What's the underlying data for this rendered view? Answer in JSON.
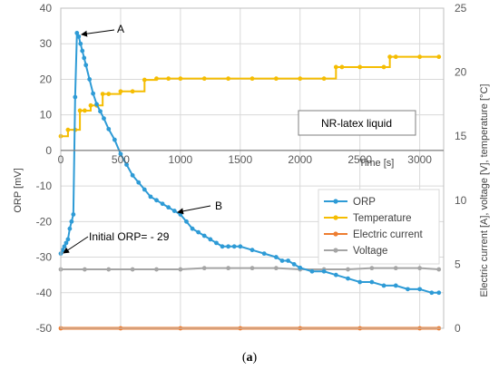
{
  "caption": {
    "open": "(",
    "letter": "a",
    "close": ")"
  },
  "chart_data": {
    "type": "line",
    "xlabel": "Time  [s]",
    "ylabel_left": "ORP  [mV]",
    "ylabel_right": "Electric current  [A], voltage  [V], temperature  [°C]",
    "xlim": [
      0,
      3200
    ],
    "ylim_left": [
      -50,
      40
    ],
    "ylim_right": [
      0,
      25
    ],
    "x_ticks": [
      0,
      500,
      1000,
      1500,
      2000,
      2500,
      3000
    ],
    "y_ticks_left": [
      -50,
      -40,
      -30,
      -20,
      -10,
      0,
      10,
      20,
      30,
      40
    ],
    "y_ticks_right": [
      0,
      5,
      10,
      15,
      20,
      25
    ],
    "grid": true,
    "legend_position": "middle-right",
    "inset_label": "NR-latex liquid",
    "annotations": [
      {
        "text": "A",
        "x": 160,
        "y": 33
      },
      {
        "text": "B",
        "x": 900,
        "y": -17
      },
      {
        "text": "Initial ORP= - 29",
        "x": 0,
        "y": -29
      }
    ],
    "series": [
      {
        "name": "ORP",
        "axis": "left",
        "color": "#2e9bd6",
        "x": [
          0,
          15,
          30,
          45,
          60,
          75,
          90,
          105,
          120,
          135,
          150,
          165,
          180,
          195,
          210,
          240,
          270,
          300,
          330,
          360,
          400,
          450,
          500,
          550,
          600,
          650,
          700,
          750,
          800,
          850,
          900,
          950,
          1000,
          1050,
          1100,
          1150,
          1200,
          1250,
          1300,
          1350,
          1400,
          1450,
          1500,
          1600,
          1700,
          1800,
          1850,
          1900,
          1950,
          2000,
          2100,
          2200,
          2300,
          2400,
          2500,
          2600,
          2700,
          2800,
          2900,
          3000,
          3100,
          3160
        ],
        "y": [
          -29,
          -28,
          -27,
          -26,
          -25,
          -22,
          -20,
          -18,
          15,
          33,
          32,
          30,
          28,
          26,
          24,
          20,
          16,
          13,
          11,
          9,
          6,
          3,
          -1,
          -4,
          -7,
          -9,
          -11,
          -13,
          -14,
          -15,
          -16,
          -17,
          -18,
          -20,
          -22,
          -23,
          -24,
          -25,
          -26,
          -27,
          -27,
          -27,
          -27,
          -28,
          -29,
          -30,
          -31,
          -31,
          -32,
          -33,
          -34,
          -34,
          -35,
          -36,
          -37,
          -37,
          -38,
          -38,
          -39,
          -39,
          -40,
          -40
        ]
      },
      {
        "name": "Temperature",
        "axis": "right",
        "color": "#f5bd02",
        "x": [
          0,
          60,
          120,
          160,
          200,
          250,
          300,
          350,
          400,
          500,
          600,
          700,
          800,
          900,
          1000,
          1200,
          1400,
          1600,
          1800,
          2000,
          2200,
          2300,
          2350,
          2500,
          2700,
          2750,
          2800,
          3000,
          3160
        ],
        "y": [
          15,
          15.5,
          15.5,
          17.0,
          17.0,
          17.4,
          17.4,
          18.3,
          18.3,
          18.5,
          18.5,
          19.4,
          19.5,
          19.5,
          19.5,
          19.5,
          19.5,
          19.5,
          19.5,
          19.5,
          19.5,
          20.4,
          20.4,
          20.4,
          20.4,
          21.2,
          21.2,
          21.2,
          21.2
        ]
      },
      {
        "name": "Electric current",
        "axis": "right",
        "color": "#ed7d31",
        "x": [
          0,
          500,
          1000,
          1500,
          2000,
          2500,
          3000,
          3160
        ],
        "y": [
          0,
          0,
          0,
          0,
          0,
          0,
          0,
          0
        ]
      },
      {
        "name": "Voltage",
        "axis": "right",
        "color": "#a5a5a5",
        "x": [
          0,
          200,
          400,
          600,
          800,
          1000,
          1200,
          1400,
          1600,
          1800,
          2000,
          2200,
          2400,
          2600,
          2800,
          3000,
          3160
        ],
        "y": [
          4.6,
          4.6,
          4.6,
          4.6,
          4.6,
          4.6,
          4.7,
          4.7,
          4.7,
          4.7,
          4.6,
          4.6,
          4.6,
          4.7,
          4.7,
          4.7,
          4.6
        ]
      }
    ]
  }
}
